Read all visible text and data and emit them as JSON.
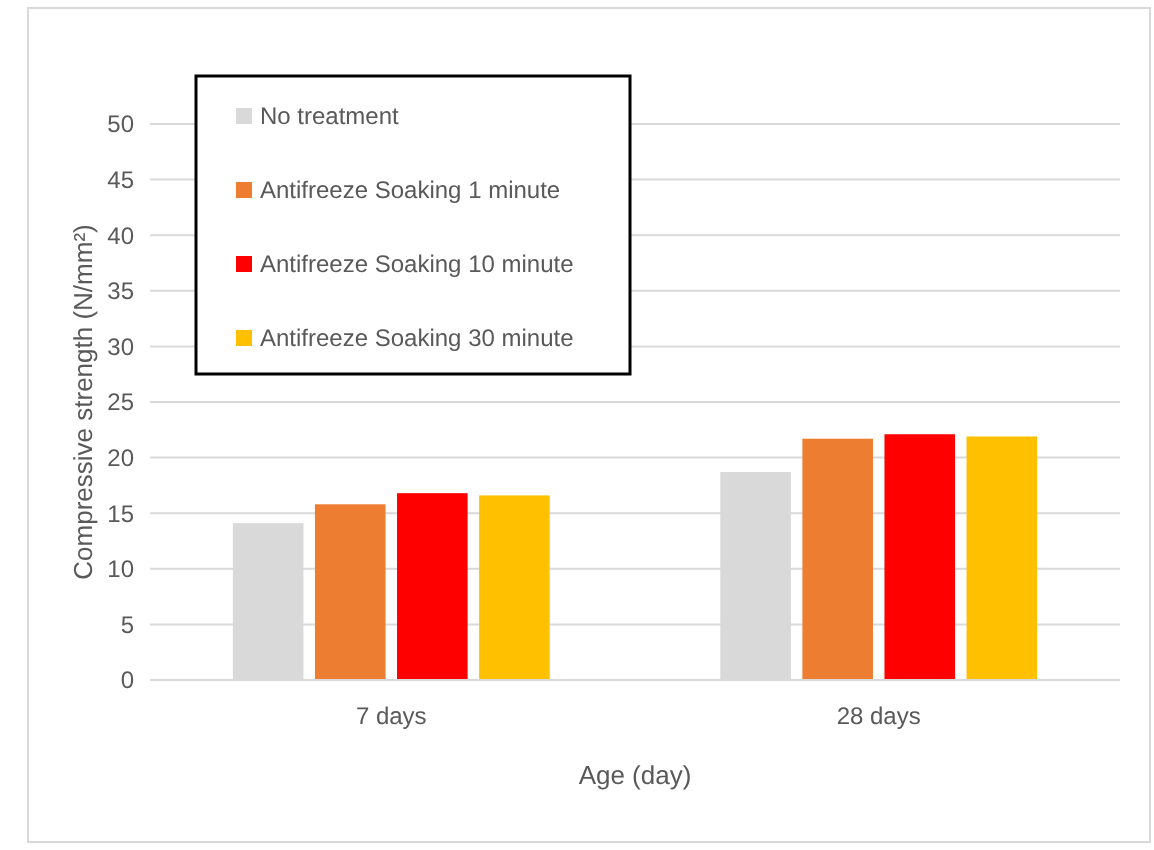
{
  "chart_data": {
    "type": "bar",
    "xlabel": "Age (day)",
    "ylabel": "Compressive strength (N/mm²)",
    "categories": [
      "7 days",
      "28 days"
    ],
    "series": [
      {
        "name": "No treatment",
        "color": "#d9d9d9",
        "values": [
          14.1,
          18.7
        ]
      },
      {
        "name": "Antifreeze Soaking 1 minute",
        "color": "#ed7d31",
        "values": [
          15.8,
          21.7
        ]
      },
      {
        "name": "Antifreeze Soaking 10 minute",
        "color": "#ff0000",
        "values": [
          16.8,
          22.1
        ]
      },
      {
        "name": "Antifreeze Soaking 30 minute",
        "color": "#ffc000",
        "values": [
          16.6,
          21.9
        ]
      }
    ],
    "ylim": [
      0,
      50
    ],
    "yticks": [
      0,
      5,
      10,
      15,
      20,
      25,
      30,
      35,
      40,
      45,
      50
    ],
    "grid": "y",
    "legend": "top left"
  }
}
